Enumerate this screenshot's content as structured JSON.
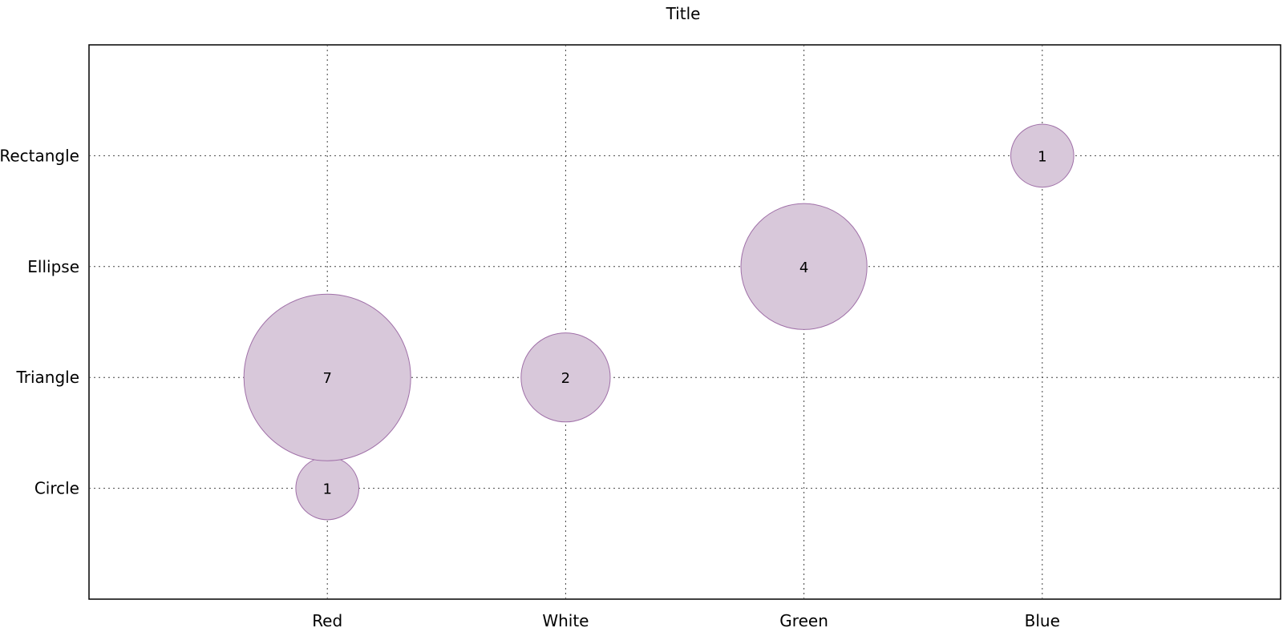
{
  "chart_data": {
    "type": "scatter",
    "subtype": "bubble",
    "title": "Title",
    "xlabel": "",
    "ylabel": "",
    "x_categories": [
      "Red",
      "White",
      "Green",
      "Blue"
    ],
    "y_categories": [
      "Circle",
      "Triangle",
      "Ellipse",
      "Rectangle"
    ],
    "points": [
      {
        "x": "Red",
        "y": "Circle",
        "value": 1,
        "label": "1"
      },
      {
        "x": "Red",
        "y": "Triangle",
        "value": 7,
        "label": "7"
      },
      {
        "x": "White",
        "y": "Triangle",
        "value": 2,
        "label": "2"
      },
      {
        "x": "Green",
        "y": "Ellipse",
        "value": 4,
        "label": "4"
      },
      {
        "x": "Blue",
        "y": "Rectangle",
        "value": 1,
        "label": "1"
      }
    ],
    "grid": true,
    "legend": "none",
    "colors": {
      "bubble_fill": "#d8c8da",
      "bubble_stroke": "#a070a8",
      "grid": "#444444",
      "axis": "#000000"
    }
  }
}
